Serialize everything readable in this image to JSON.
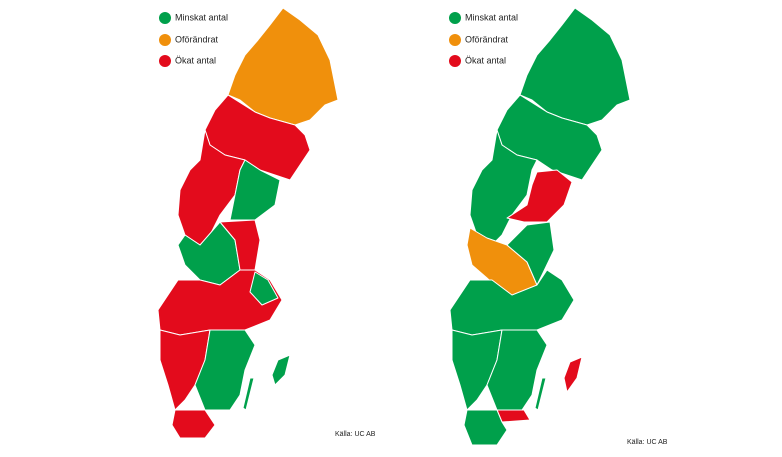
{
  "maps": [
    {
      "legend": [
        {
          "label": "Minskat antal",
          "color": "#00a04b"
        },
        {
          "label": "Oförändrat",
          "color": "#f0900c"
        },
        {
          "label": "Ökat antal",
          "color": "#e30b1c"
        }
      ],
      "source": "Källa: UC AB"
    },
    {
      "legend": [
        {
          "label": "Minskat antal",
          "color": "#00a04b"
        },
        {
          "label": "Oförändrat",
          "color": "#f0900c"
        },
        {
          "label": "Ökat antal",
          "color": "#e30b1c"
        }
      ],
      "source": "Källa: UC AB"
    }
  ]
}
